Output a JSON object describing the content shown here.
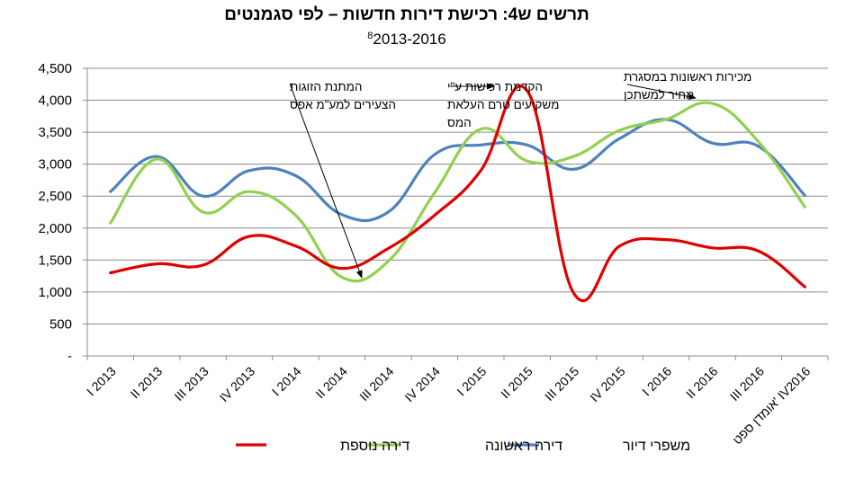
{
  "chart_data": {
    "type": "line",
    "title": "תרשים ש4: רכישת דירות חדשות – לפי סגמנטים",
    "subtitle": "2013-2016",
    "subtitle_footnote": "8",
    "ylim": [
      0,
      4500
    ],
    "y_ticks": [
      {
        "value": 0,
        "label": "-"
      },
      {
        "value": 500,
        "label": "500"
      },
      {
        "value": 1000,
        "label": "1,000"
      },
      {
        "value": 1500,
        "label": "1,500"
      },
      {
        "value": 2000,
        "label": "2,000"
      },
      {
        "value": 2500,
        "label": "2,500"
      },
      {
        "value": 3000,
        "label": "3,000"
      },
      {
        "value": 3500,
        "label": "3,500"
      },
      {
        "value": 4000,
        "label": "4,000"
      },
      {
        "value": 4500,
        "label": "4,500"
      }
    ],
    "categories": [
      "I 2013",
      "II 2013",
      "III 2013",
      "IV 2013",
      "I 2014",
      "II 2014",
      "III 2014",
      "IV 2014",
      "I 2015",
      "II 2015",
      "III 2015",
      "IV 2015",
      "I 2016",
      "II 2016",
      "III 2016",
      "אומדן ספט' IV2016"
    ],
    "series": [
      {
        "name": "משפרי דיור",
        "color": "#4F81BD",
        "values": [
          2570,
          3120,
          2500,
          2900,
          2820,
          2210,
          2250,
          3150,
          3300,
          3300,
          2920,
          3400,
          3700,
          3330,
          3280,
          2510
        ]
      },
      {
        "name": "דירה ראשונה",
        "color": "#92D050",
        "values": [
          2080,
          3080,
          2250,
          2570,
          2200,
          1230,
          1480,
          2550,
          3550,
          3050,
          3120,
          3530,
          3700,
          3950,
          3350,
          2330
        ]
      },
      {
        "name": "דירה נוספת",
        "color": "#E00000",
        "values": [
          1300,
          1440,
          1420,
          1870,
          1720,
          1370,
          1680,
          2200,
          2900,
          4150,
          990,
          1720,
          1820,
          1690,
          1640,
          1080
        ]
      }
    ],
    "legend_position": "bottom",
    "annotations": [
      {
        "id": "couples",
        "lines": [
          "המתנת הזוגות",
          "הצעירים למע\"מ אפס"
        ]
      },
      {
        "id": "investors",
        "lines": [
          "הקדמת רכישות ע\"י",
          "משקיעים טרם העלאת",
          "המס"
        ]
      },
      {
        "id": "first-sales",
        "lines": [
          "מכירות ראשונות במסגרת",
          "מחיר למשתכן"
        ]
      }
    ]
  }
}
